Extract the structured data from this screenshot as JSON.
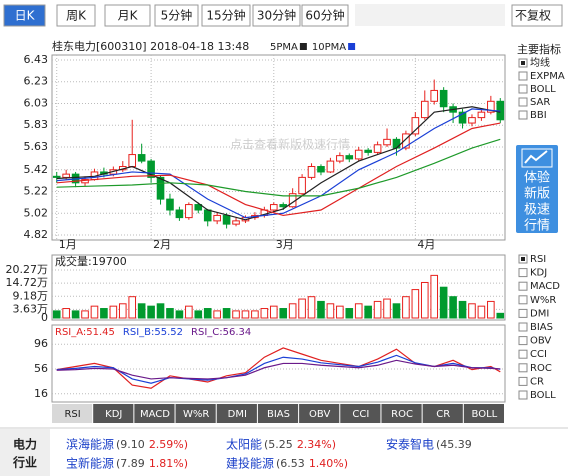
{
  "tabs": {
    "items": [
      "日K",
      "周K",
      "月K",
      "5分钟",
      "15分钟",
      "30分钟",
      "60分钟"
    ],
    "active": 0
  },
  "adjust": "不复权",
  "header": {
    "title": "桂东电力[600310] 2018-04-18 13:48"
  },
  "watermark": "点击查看新版极速行情",
  "chart_data": [
    {
      "type": "candlestick",
      "ylim": [
        4.82,
        6.43
      ],
      "yticks": [
        6.43,
        6.23,
        6.03,
        5.83,
        5.63,
        5.42,
        5.22,
        5.02,
        4.82
      ],
      "xlim": [
        0,
        48
      ],
      "xticks": [
        {
          "value": 0,
          "label": "1月"
        },
        {
          "value": 10,
          "label": "2月"
        },
        {
          "value": 23,
          "label": "3月"
        },
        {
          "value": 38,
          "label": "4月"
        }
      ],
      "grid": true,
      "up_color": "#e8201c",
      "down_color": "#009a2e",
      "candles": [
        {
          "o": 5.36,
          "h": 5.4,
          "l": 5.3,
          "c": 5.35
        },
        {
          "o": 5.35,
          "h": 5.42,
          "l": 5.33,
          "c": 5.38
        },
        {
          "o": 5.38,
          "h": 5.4,
          "l": 5.26,
          "c": 5.3
        },
        {
          "o": 5.3,
          "h": 5.36,
          "l": 5.27,
          "c": 5.33
        },
        {
          "o": 5.33,
          "h": 5.43,
          "l": 5.32,
          "c": 5.4
        },
        {
          "o": 5.4,
          "h": 5.44,
          "l": 5.35,
          "c": 5.38
        },
        {
          "o": 5.38,
          "h": 5.45,
          "l": 5.36,
          "c": 5.42
        },
        {
          "o": 5.42,
          "h": 5.5,
          "l": 5.4,
          "c": 5.45
        },
        {
          "o": 5.45,
          "h": 5.88,
          "l": 5.44,
          "c": 5.56
        },
        {
          "o": 5.56,
          "h": 5.66,
          "l": 5.48,
          "c": 5.5
        },
        {
          "o": 5.5,
          "h": 5.52,
          "l": 5.3,
          "c": 5.35
        },
        {
          "o": 5.35,
          "h": 5.37,
          "l": 5.1,
          "c": 5.15
        },
        {
          "o": 5.15,
          "h": 5.2,
          "l": 5.0,
          "c": 5.05
        },
        {
          "o": 5.05,
          "h": 5.08,
          "l": 4.95,
          "c": 4.98
        },
        {
          "o": 4.98,
          "h": 5.12,
          "l": 4.96,
          "c": 5.1
        },
        {
          "o": 5.1,
          "h": 5.12,
          "l": 5.02,
          "c": 5.05
        },
        {
          "o": 5.05,
          "h": 5.06,
          "l": 4.9,
          "c": 4.95
        },
        {
          "o": 4.95,
          "h": 5.03,
          "l": 4.92,
          "c": 5.0
        },
        {
          "o": 5.0,
          "h": 5.02,
          "l": 4.88,
          "c": 4.92
        },
        {
          "o": 4.92,
          "h": 4.98,
          "l": 4.9,
          "c": 4.95
        },
        {
          "o": 4.95,
          "h": 5.0,
          "l": 4.93,
          "c": 4.98
        },
        {
          "o": 4.98,
          "h": 5.03,
          "l": 4.96,
          "c": 5.0
        },
        {
          "o": 5.0,
          "h": 5.08,
          "l": 4.98,
          "c": 5.05
        },
        {
          "o": 5.05,
          "h": 5.12,
          "l": 5.03,
          "c": 5.1
        },
        {
          "o": 5.1,
          "h": 5.12,
          "l": 5.05,
          "c": 5.08
        },
        {
          "o": 5.08,
          "h": 5.25,
          "l": 5.07,
          "c": 5.2
        },
        {
          "o": 5.2,
          "h": 5.38,
          "l": 5.18,
          "c": 5.35
        },
        {
          "o": 5.35,
          "h": 5.48,
          "l": 5.33,
          "c": 5.45
        },
        {
          "o": 5.45,
          "h": 5.47,
          "l": 5.37,
          "c": 5.4
        },
        {
          "o": 5.4,
          "h": 5.53,
          "l": 5.39,
          "c": 5.5
        },
        {
          "o": 5.5,
          "h": 5.58,
          "l": 5.48,
          "c": 5.55
        },
        {
          "o": 5.55,
          "h": 5.57,
          "l": 5.49,
          "c": 5.52
        },
        {
          "o": 5.52,
          "h": 5.63,
          "l": 5.5,
          "c": 5.6
        },
        {
          "o": 5.6,
          "h": 5.62,
          "l": 5.55,
          "c": 5.58
        },
        {
          "o": 5.58,
          "h": 5.68,
          "l": 5.56,
          "c": 5.65
        },
        {
          "o": 5.65,
          "h": 5.8,
          "l": 5.63,
          "c": 5.7
        },
        {
          "o": 5.7,
          "h": 5.72,
          "l": 5.55,
          "c": 5.62
        },
        {
          "o": 5.62,
          "h": 5.78,
          "l": 5.6,
          "c": 5.75
        },
        {
          "o": 5.75,
          "h": 5.95,
          "l": 5.73,
          "c": 5.9
        },
        {
          "o": 5.9,
          "h": 6.15,
          "l": 5.88,
          "c": 6.05
        },
        {
          "o": 6.05,
          "h": 6.25,
          "l": 6.02,
          "c": 6.15
        },
        {
          "o": 6.15,
          "h": 6.18,
          "l": 5.95,
          "c": 6.0
        },
        {
          "o": 6.0,
          "h": 6.03,
          "l": 5.85,
          "c": 5.95
        },
        {
          "o": 5.95,
          "h": 5.98,
          "l": 5.8,
          "c": 5.85
        },
        {
          "o": 5.85,
          "h": 5.93,
          "l": 5.82,
          "c": 5.9
        },
        {
          "o": 5.9,
          "h": 5.98,
          "l": 5.87,
          "c": 5.95
        },
        {
          "o": 5.95,
          "h": 6.1,
          "l": 5.93,
          "c": 6.05
        },
        {
          "o": 6.05,
          "h": 6.08,
          "l": 5.85,
          "c": 5.88
        }
      ],
      "series": [
        {
          "name": "5PMA",
          "color": "#222222",
          "x": [
            0,
            4,
            8,
            12,
            16,
            20,
            24,
            28,
            32,
            36,
            40,
            44,
            47
          ],
          "values": [
            5.34,
            5.36,
            5.45,
            5.3,
            5.05,
            4.96,
            5.06,
            5.3,
            5.5,
            5.62,
            5.95,
            6.0,
            5.95
          ]
        },
        {
          "name": "10PMA",
          "color": "#1a3fd6",
          "x": [
            0,
            4,
            8,
            12,
            16,
            20,
            24,
            28,
            32,
            36,
            40,
            44,
            47
          ],
          "values": [
            5.32,
            5.35,
            5.4,
            5.38,
            5.15,
            4.98,
            5.02,
            5.18,
            5.42,
            5.58,
            5.8,
            5.98,
            5.96
          ]
        },
        {
          "color": "#e02020",
          "x": [
            0,
            4,
            8,
            12,
            16,
            20,
            24,
            28,
            32,
            36,
            40,
            44,
            47
          ],
          "values": [
            5.3,
            5.33,
            5.36,
            5.37,
            5.28,
            5.1,
            5.0,
            5.05,
            5.25,
            5.45,
            5.62,
            5.8,
            5.85
          ]
        },
        {
          "color": "#1e9a2a",
          "x": [
            0,
            4,
            8,
            12,
            16,
            20,
            24,
            28,
            32,
            36,
            40,
            44,
            47
          ],
          "values": [
            5.26,
            5.27,
            5.28,
            5.3,
            5.28,
            5.22,
            5.18,
            5.18,
            5.25,
            5.35,
            5.48,
            5.62,
            5.7
          ]
        }
      ]
    },
    {
      "type": "bar",
      "title": "成交量:19700",
      "ylim": [
        0,
        20.27
      ],
      "yticks": [
        {
          "value": 20.27,
          "label": "20.27万"
        },
        {
          "value": 14.72,
          "label": "14.72万"
        },
        {
          "value": 9.18,
          "label": "9.18万"
        },
        {
          "value": 3.63,
          "label": "3.63万"
        },
        0
      ],
      "values": [
        3,
        4,
        3,
        3,
        5,
        4,
        5,
        6,
        9,
        6,
        5,
        6,
        4,
        3,
        5,
        3,
        4,
        3,
        4,
        3,
        3,
        3,
        4,
        5,
        4,
        6,
        8,
        9,
        7,
        6,
        5,
        4,
        6,
        5,
        7,
        8,
        6,
        9,
        12,
        15,
        18,
        13,
        9,
        7,
        6,
        5,
        7,
        1.97
      ]
    },
    {
      "type": "line",
      "ylim": [
        6,
        106
      ],
      "yticks": [
        96,
        56,
        16
      ],
      "series": [
        {
          "name": "RSI_A:51.45",
          "color": "#e02020",
          "x": [
            0,
            2,
            4,
            6,
            8,
            10,
            12,
            14,
            16,
            18,
            20,
            22,
            24,
            26,
            28,
            30,
            32,
            34,
            36,
            38,
            40,
            42,
            44,
            46,
            47
          ],
          "values": [
            55,
            60,
            65,
            58,
            30,
            25,
            45,
            40,
            35,
            45,
            50,
            75,
            90,
            80,
            70,
            65,
            60,
            72,
            88,
            65,
            60,
            70,
            55,
            60,
            51.45
          ]
        },
        {
          "name": "RSI_B:55.52",
          "color": "#1a3fd6",
          "x": [
            0,
            2,
            4,
            6,
            8,
            10,
            12,
            14,
            16,
            18,
            20,
            22,
            24,
            26,
            28,
            30,
            32,
            34,
            36,
            38,
            40,
            42,
            44,
            46,
            47
          ],
          "values": [
            55,
            57,
            60,
            58,
            40,
            33,
            42,
            40,
            38,
            42,
            48,
            65,
            75,
            72,
            66,
            63,
            60,
            67,
            78,
            66,
            60,
            65,
            58,
            58,
            55.52
          ]
        },
        {
          "name": "RSI_C:56.34",
          "color": "#6a1a8a",
          "x": [
            0,
            2,
            4,
            6,
            8,
            10,
            12,
            14,
            16,
            18,
            20,
            22,
            24,
            26,
            28,
            30,
            32,
            34,
            36,
            38,
            40,
            42,
            44,
            46,
            47
          ],
          "values": [
            54,
            55,
            57,
            56,
            46,
            40,
            42,
            41,
            40,
            42,
            46,
            58,
            65,
            65,
            62,
            60,
            58,
            62,
            70,
            64,
            60,
            62,
            58,
            57,
            56.34
          ]
        }
      ]
    }
  ],
  "main_indicators": {
    "title": "主要指标",
    "items": [
      "均线",
      "EXPMA",
      "BOLL",
      "SAR",
      "BBI"
    ],
    "checked": 0
  },
  "promo": [
    "体验",
    "新版",
    "极速",
    "行情"
  ],
  "sub_indicators": {
    "items": [
      "RSI",
      "KDJ",
      "MACD",
      "W%R",
      "DMI",
      "BIAS",
      "OBV",
      "CCI",
      "ROC",
      "CR",
      "BOLL"
    ],
    "checked": 0
  },
  "bottom_tabs": {
    "items": [
      "RSI",
      "KDJ",
      "MACD",
      "W%R",
      "DMI",
      "BIAS",
      "OBV",
      "CCI",
      "ROC",
      "CR",
      "BOLL"
    ],
    "active": 0
  },
  "industry": {
    "title": [
      "电力",
      "行业"
    ],
    "stocks": [
      {
        "name": "滨海能源",
        "quote": "(9.10",
        "change": "2.59%)"
      },
      {
        "name": "宝新能源",
        "quote": "(7.89",
        "change": "1.81%)"
      },
      {
        "name": "太阳能",
        "quote": "(5.25",
        "change": "2.34%)"
      },
      {
        "name": "建投能源",
        "quote": "(6.53",
        "change": "1.40%)"
      },
      {
        "name": "安泰智电",
        "quote": "(45.39"
      }
    ]
  }
}
